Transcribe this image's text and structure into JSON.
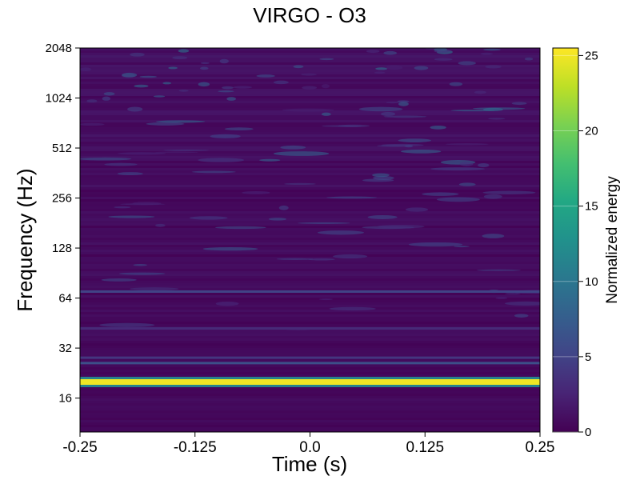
{
  "chart_data": {
    "type": "heatmap",
    "title": "VIRGO - O3",
    "xlabel": "Time (s)",
    "ylabel": "Frequency (Hz)",
    "xlim": [
      -0.25,
      0.25
    ],
    "ylim": [
      10,
      2048
    ],
    "yscale": "log2",
    "xticks": [
      -0.25,
      -0.125,
      0.0,
      0.125,
      0.25
    ],
    "xtick_labels": [
      "-0.25",
      "-0.125",
      "0.0",
      "0.125",
      "0.25"
    ],
    "yticks": [
      16,
      32,
      64,
      128,
      256,
      512,
      1024,
      2048
    ],
    "ytick_labels": [
      "16",
      "32",
      "64",
      "128",
      "256",
      "512",
      "1024",
      "2048"
    ],
    "colormap": "viridis",
    "colorbar": {
      "label": "Normalized energy",
      "vmin": 0,
      "vmax": 25.5,
      "ticks": [
        0,
        5,
        10,
        15,
        20,
        25
      ],
      "tick_labels": [
        "0",
        "5",
        "10",
        "15",
        "20",
        "25"
      ]
    },
    "features": [
      {
        "kind": "horizontal-line",
        "frequency_hz": 20,
        "energy": 25
      },
      {
        "kind": "horizontal-line",
        "frequency_hz": 26,
        "energy": 6
      },
      {
        "kind": "horizontal-line",
        "frequency_hz": 28,
        "energy": 4
      },
      {
        "kind": "horizontal-line",
        "frequency_hz": 70,
        "energy": 5
      },
      {
        "kind": "horizontal-line",
        "frequency_hz": 42,
        "energy": 3
      },
      {
        "kind": "background-noise",
        "energy_typical": 1.5,
        "energy_max_high_freq": 10
      }
    ]
  }
}
